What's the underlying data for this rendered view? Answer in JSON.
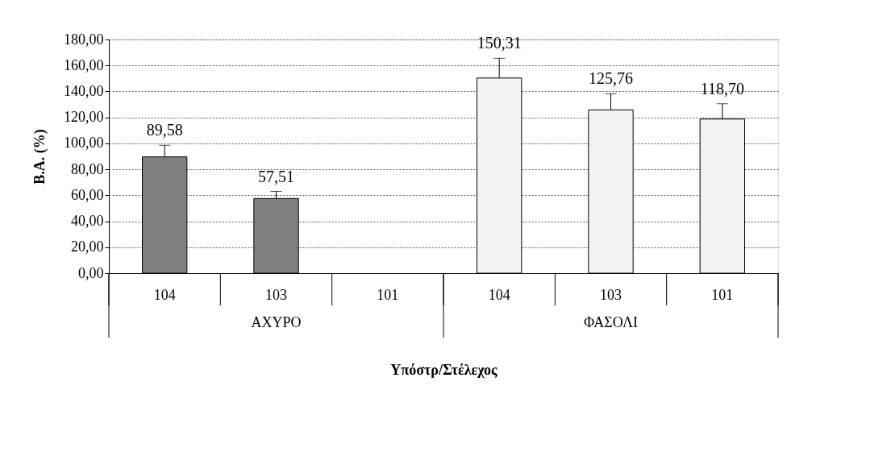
{
  "chart_data": {
    "type": "bar",
    "xlabel": "Υπόστρ/Στέλεχος",
    "ylabel": "Β.Α. (%)",
    "categories": [
      "104",
      "103",
      "101",
      "104",
      "103",
      "101"
    ],
    "values": [
      89.58,
      57.51,
      null,
      150.31,
      125.76,
      118.7
    ],
    "colors": [
      "#808080",
      "#808080",
      "#808080",
      "#f2f2f2",
      "#f2f2f2",
      "#f2f2f2"
    ],
    "errors": [
      [
        89.58,
        98.5
      ],
      [
        57.51,
        63.0
      ],
      null,
      [
        150.31,
        165.5
      ],
      [
        125.76,
        138.2
      ],
      [
        118.7,
        130.5
      ]
    ],
    "value_labels": [
      "89,58",
      "57,51",
      null,
      "150,31",
      "125,76",
      "118,70"
    ],
    "ylim": [
      0,
      180
    ],
    "yticks": [
      {
        "value": 0,
        "label": "0,00"
      },
      {
        "value": 20,
        "label": "20,00"
      },
      {
        "value": 40,
        "label": "40,00"
      },
      {
        "value": 60,
        "label": "60,00"
      },
      {
        "value": 80,
        "label": "80,00"
      },
      {
        "value": 100,
        "label": "100,00"
      },
      {
        "value": 120,
        "label": "120,00"
      },
      {
        "value": 140,
        "label": "140,00"
      },
      {
        "value": 160,
        "label": "160,00"
      },
      {
        "value": 180,
        "label": "180,00"
      }
    ],
    "grid": "y",
    "annotations": [
      "ΑΧΥΡΟ",
      "ΦΑΣΟΛΙ"
    ]
  }
}
